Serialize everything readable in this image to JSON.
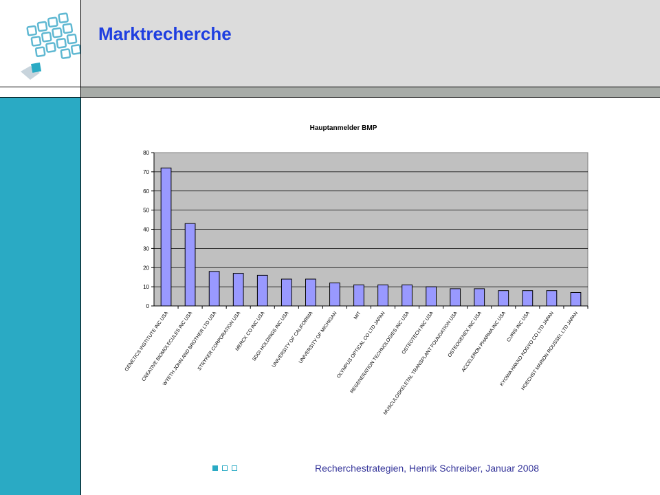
{
  "slide": {
    "title": "Marktrecherche",
    "footer": "Recherchestrategien, Henrik Schreiber, Januar 2008"
  },
  "logo": {
    "icon": "grid-squares-logo-icon"
  },
  "colors": {
    "title": "#1f3fe0",
    "sidebar": "#2aaac4",
    "header_bg": "#dcdcdc",
    "plot_bg": "#c0c0c0",
    "bar_fill": "#9999ff"
  },
  "chart_data": {
    "type": "bar",
    "title": "Hauptanmelder BMP",
    "xlabel": "",
    "ylabel": "",
    "ylim": [
      0,
      80
    ],
    "yticks": [
      0,
      10,
      20,
      30,
      40,
      50,
      60,
      70,
      80
    ],
    "grid": true,
    "legend": false,
    "categories": [
      "GENETICS INSTITUTE INC USA",
      "CREATIVE BIOMOLECULES INC USA",
      "WYETH JOHN AND BROTHER LTD USA",
      "STRYKER CORPORATION USA",
      "MERCK CO INC USA",
      "SDGI HOLDINGS INC USA",
      "UNIVERSITY OF CALIFORNIA",
      "UNIVERSITY OF MICHIGAN",
      "MIT",
      "OLYMPUS OPTICAL CO LTD JAPAN",
      "REGENERATION TECHNOLOGIES INC USA",
      "OSTEOTECH INC USA",
      "MUSCULOSKELETAL TRANSPLANT FOUNDATION USA",
      "OSTEOGENEX INC USA",
      "ACCELERON PHARMA INC USA",
      "CURIS INC USA",
      "KYOWA HAKKO KOGYO CO LTD JAPAN",
      "HOECHST MARION ROUSSEL LTD JAPAN"
    ],
    "values": [
      72,
      43,
      18,
      17,
      16,
      14,
      14,
      12,
      11,
      11,
      11,
      10,
      9,
      9,
      8,
      8,
      8,
      7
    ]
  }
}
